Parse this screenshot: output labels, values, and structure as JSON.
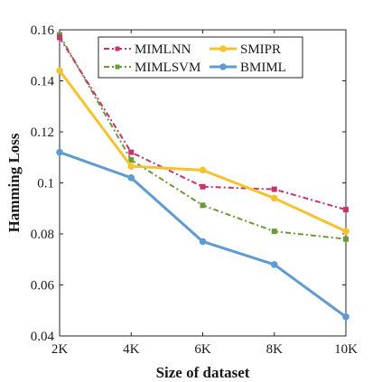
{
  "chart_data": {
    "type": "line",
    "xlabel": "Size of dataset",
    "ylabel": "Hamming Loss",
    "categories": [
      "2K",
      "4K",
      "6K",
      "8K",
      "10K"
    ],
    "ylim": [
      0.04,
      0.16
    ],
    "yticks": [
      "0.04",
      "0.06",
      "0.08",
      "0.1",
      "0.12",
      "0.14",
      "0.16"
    ],
    "grid": false,
    "legend_position": "top",
    "series": [
      {
        "name": "MIMLNN",
        "values": [
          0.157,
          0.112,
          0.0985,
          0.0975,
          0.0895
        ],
        "color": "#c7336b",
        "dash": "dashdot",
        "marker": "square"
      },
      {
        "name": "MIMLSVM",
        "values": [
          0.158,
          0.109,
          0.0912,
          0.081,
          0.078
        ],
        "color": "#6a9a3a",
        "dash": "dashdot",
        "marker": "square"
      },
      {
        "name": "SMIPR",
        "values": [
          0.144,
          0.1065,
          0.105,
          0.094,
          0.081
        ],
        "color": "#f5c231",
        "dash": "solid",
        "marker": "circle"
      },
      {
        "name": "BMIML",
        "values": [
          0.112,
          0.102,
          0.077,
          0.068,
          0.0475
        ],
        "color": "#5f9bd0",
        "dash": "solid",
        "marker": "circle"
      }
    ],
    "legend_order": [
      "MIMLNN",
      "SMIPR",
      "MIMLSVM",
      "BMIML"
    ]
  }
}
